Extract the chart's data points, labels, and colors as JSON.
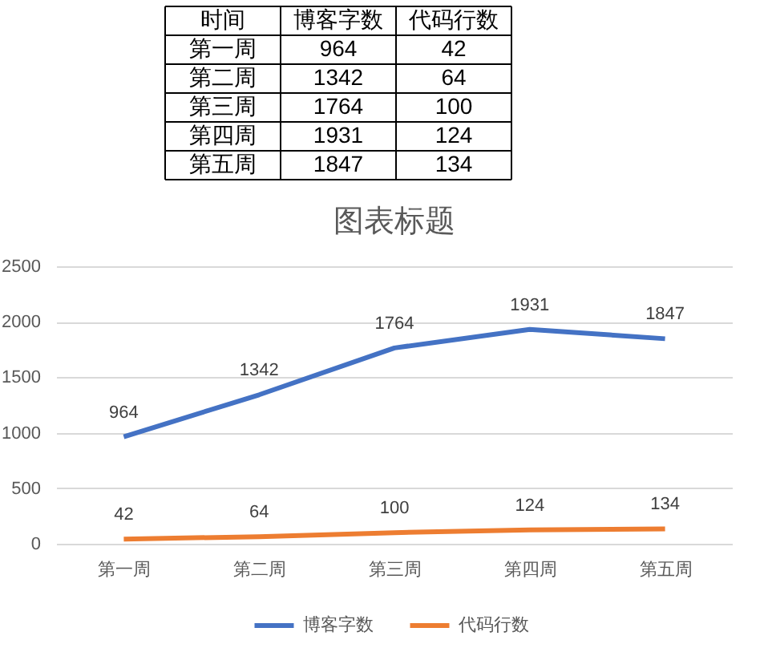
{
  "chart_data": [
    {
      "type": "other",
      "annotations": [
        "时间"
      ],
      "categories": [
        "第一周",
        "第二周",
        "第三周",
        "第四周",
        "第五周"
      ],
      "series": [
        {
          "name": "博客字数",
          "values": [
            964,
            1342,
            1764,
            1931,
            1847
          ]
        },
        {
          "name": "代码行数",
          "values": [
            42,
            64,
            100,
            124,
            134
          ]
        }
      ],
      "data_labels": true
    },
    {
      "type": "line",
      "title": "图表标题",
      "categories": [
        "第一周",
        "第二周",
        "第三周",
        "第四周",
        "第五周"
      ],
      "series": [
        {
          "name": "博客字数",
          "color": "#4472c4",
          "values": [
            964,
            1342,
            1764,
            1931,
            1847
          ]
        },
        {
          "name": "代码行数",
          "color": "#ed7d31",
          "values": [
            42,
            64,
            100,
            124,
            134
          ]
        }
      ],
      "ylim": [
        0,
        2500
      ],
      "yticks": [
        0,
        500,
        1000,
        1500,
        2000,
        2500
      ],
      "grid": "y",
      "legend": "bottom",
      "data_labels": true
    }
  ]
}
